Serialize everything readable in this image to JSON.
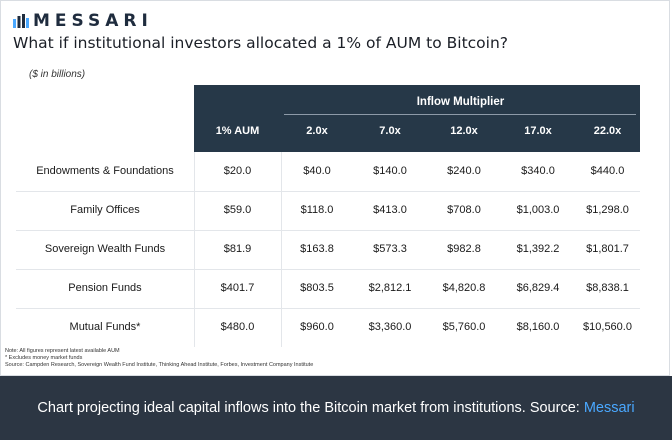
{
  "brand": {
    "name": "MESSARI",
    "accent_color": "#4aa8ff",
    "header_color": "#263848"
  },
  "title": "What if institutional investors allocated a 1% of AUM to Bitcoin?",
  "units_note": "($ in billions)",
  "table": {
    "group_header": "Inflow Multiplier",
    "columns": [
      "1% AUM",
      "2.0x",
      "7.0x",
      "12.0x",
      "17.0x",
      "22.0x"
    ],
    "rows": [
      {
        "label": "Endowments & Foundations",
        "values": [
          "$20.0",
          "$40.0",
          "$140.0",
          "$240.0",
          "$340.0",
          "$440.0"
        ]
      },
      {
        "label": "Family Offices",
        "values": [
          "$59.0",
          "$118.0",
          "$413.0",
          "$708.0",
          "$1,003.0",
          "$1,298.0"
        ]
      },
      {
        "label": "Sovereign Wealth Funds",
        "values": [
          "$81.9",
          "$163.8",
          "$573.3",
          "$982.8",
          "$1,392.2",
          "$1,801.7"
        ]
      },
      {
        "label": "Pension Funds",
        "values": [
          "$401.7",
          "$803.5",
          "$2,812.1",
          "$4,820.8",
          "$6,829.4",
          "$8,838.1"
        ]
      },
      {
        "label": "Mutual Funds*",
        "values": [
          "$480.0",
          "$960.0",
          "$3,360.0",
          "$5,760.0",
          "$8,160.0",
          "$10,560.0"
        ]
      }
    ]
  },
  "notes": [
    "Note: All figures represent latest available AUM",
    "* Excludes money market funds",
    "Source: Campden Research, Sovereign Wealth Fund Institute, Thinking Ahead Institute, Forbes, Investment Company Institute"
  ],
  "caption": {
    "text": "Chart projecting ideal capital inflows into the Bitcoin market from institutions. Source: ",
    "source_link": "Messari"
  }
}
